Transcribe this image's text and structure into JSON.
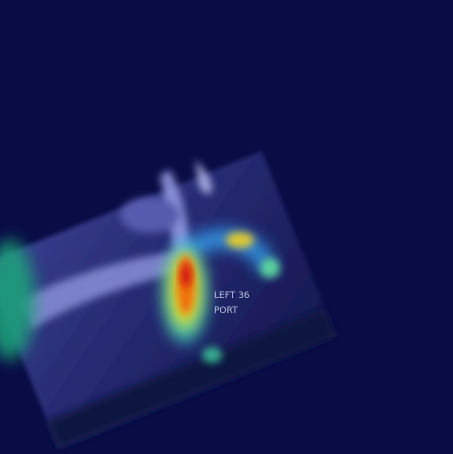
{
  "image": {
    "marker_lines": [
      "LEFT 36",
      "PORT"
    ]
  }
}
